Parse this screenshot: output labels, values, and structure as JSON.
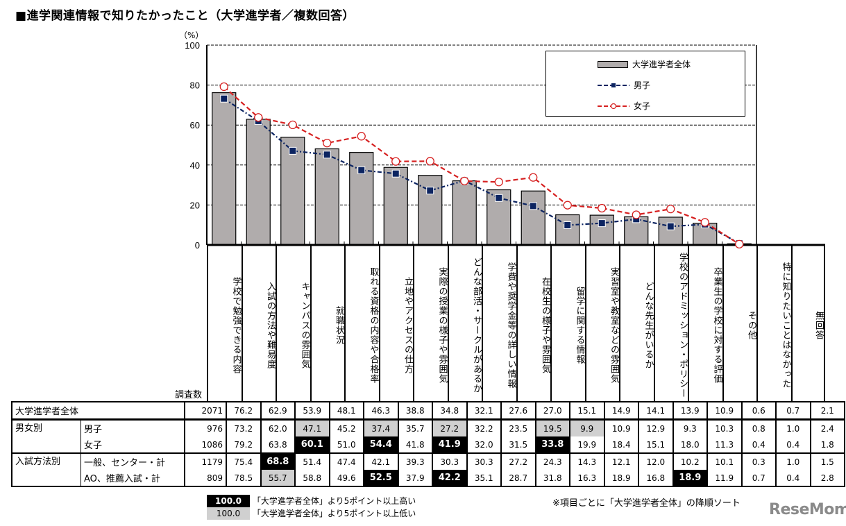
{
  "title": "■進学関連情報で知りたかったこと（大学進学者／複数回答）",
  "unit_label": "（%）",
  "legend": {
    "total": "大学進学者全体",
    "male": "男子",
    "female": "女子"
  },
  "colors": {
    "bar_fill": "#b0acac",
    "male_line": "#0c2461",
    "female_line": "#d62020",
    "highlight_high": "#000000",
    "highlight_low": "#d0d0d0"
  },
  "table": {
    "count_header": "調査数",
    "rows": [
      {
        "group": "大学進学者全体",
        "sub": "",
        "n": "2071",
        "values": [
          "76.2",
          "62.9",
          "53.9",
          "48.1",
          "46.3",
          "38.8",
          "34.8",
          "32.1",
          "27.6",
          "27.0",
          "15.1",
          "14.9",
          "14.1",
          "13.9",
          "10.9",
          "0.6",
          "0.7",
          "2.1"
        ],
        "marks": [
          "",
          "",
          "",
          "",
          "",
          "",
          "",
          "",
          "",
          "",
          "",
          "",
          "",
          "",
          "",
          "",
          "",
          ""
        ]
      },
      {
        "group": "男女別",
        "sub": "男子",
        "n": "976",
        "values": [
          "73.2",
          "62.0",
          "47.1",
          "45.2",
          "37.4",
          "35.7",
          "27.2",
          "32.2",
          "23.5",
          "19.5",
          "9.9",
          "10.9",
          "12.9",
          "9.3",
          "10.3",
          "0.8",
          "1.0",
          "2.4"
        ],
        "marks": [
          "",
          "",
          "lo",
          "",
          "lo",
          "",
          "lo",
          "",
          "",
          "lo",
          "lo",
          "",
          "",
          "",
          "",
          "",
          "",
          ""
        ]
      },
      {
        "group": "",
        "sub": "女子",
        "n": "1086",
        "values": [
          "79.2",
          "63.8",
          "60.1",
          "51.0",
          "54.4",
          "41.8",
          "41.9",
          "32.0",
          "31.5",
          "33.8",
          "19.9",
          "18.4",
          "15.1",
          "18.0",
          "11.3",
          "0.4",
          "0.4",
          "1.8"
        ],
        "marks": [
          "",
          "",
          "hi",
          "",
          "hi",
          "",
          "hi",
          "",
          "",
          "hi",
          "",
          "",
          "",
          "",
          "",
          "",
          "",
          ""
        ]
      },
      {
        "group": "入試方法別",
        "sub": "一般、センター・計",
        "n": "1179",
        "values": [
          "75.4",
          "68.8",
          "51.4",
          "47.4",
          "42.1",
          "39.3",
          "30.3",
          "30.3",
          "27.2",
          "24.3",
          "14.3",
          "12.1",
          "12.0",
          "10.2",
          "10.1",
          "0.3",
          "1.0",
          "1.5"
        ],
        "marks": [
          "",
          "hi",
          "",
          "",
          "",
          "",
          "",
          "",
          "",
          "",
          "",
          "",
          "",
          "",
          "",
          "",
          "",
          ""
        ]
      },
      {
        "group": "",
        "sub": "AO、推薦入試・計",
        "n": "809",
        "values": [
          "78.5",
          "55.7",
          "58.8",
          "49.6",
          "52.5",
          "37.9",
          "42.2",
          "35.1",
          "28.7",
          "31.8",
          "16.3",
          "18.9",
          "16.8",
          "18.9",
          "11.9",
          "0.7",
          "0.4",
          "2.8"
        ],
        "marks": [
          "",
          "lo",
          "",
          "",
          "hi",
          "",
          "hi",
          "",
          "",
          "",
          "",
          "",
          "",
          "hi",
          "",
          "",
          "",
          ""
        ]
      }
    ]
  },
  "footer": {
    "swatch_value": "100.0",
    "high_note": "「大学進学者全体」より5ポイント以上高い",
    "low_note": "「大学進学者全体」より5ポイント以上低い",
    "sort_note": "※項目ごとに「大学進学者全体」の降順ソート",
    "brand": "ReseMom"
  },
  "chart_data": {
    "type": "bar",
    "title": "進学関連情報で知りたかったこと（大学進学者／複数回答）",
    "ylabel": "（%）",
    "xlabel": "",
    "ylim": [
      0,
      100
    ],
    "yticks": [
      0,
      20,
      40,
      60,
      80,
      100
    ],
    "grid": "dashed horizontal",
    "legend_position": "top-right inside",
    "categories": [
      "学校で勉強できる内容",
      "入試の方法や難易度",
      "キャンパスの雰囲気",
      "就職状況",
      "取れる資格の内容や合格率",
      "立地やアクセスの仕方",
      "実際の授業の様子や雰囲気",
      "どんな部活・サークルがあるか",
      "学費や奨学金等の詳しい情報",
      "在校生の様子や雰囲気",
      "留学に関する情報",
      "実習室や教室などの雰囲気",
      "どんな先生がいるか",
      "学校のアドミッション・ポリシー",
      "卒業生の学校に対する評価",
      "その他",
      "特に知りたいことはなかった",
      "無回答"
    ],
    "plotted_count": 16,
    "series": [
      {
        "name": "大学進学者全体",
        "type": "bar",
        "values": [
          76.2,
          62.9,
          53.9,
          48.1,
          46.3,
          38.8,
          34.8,
          32.1,
          27.6,
          27.0,
          15.1,
          14.9,
          14.1,
          13.9,
          10.9,
          0.6
        ]
      },
      {
        "name": "男子",
        "type": "line",
        "values": [
          73.2,
          62.0,
          47.1,
          45.2,
          37.4,
          35.7,
          27.2,
          32.2,
          23.5,
          19.5,
          9.9,
          10.9,
          12.9,
          9.3,
          10.3,
          0.8
        ]
      },
      {
        "name": "女子",
        "type": "line",
        "values": [
          79.2,
          63.8,
          60.1,
          51.0,
          54.4,
          41.8,
          41.9,
          32.0,
          31.5,
          33.8,
          19.9,
          18.4,
          15.1,
          18.0,
          11.3,
          0.4
        ]
      }
    ]
  }
}
